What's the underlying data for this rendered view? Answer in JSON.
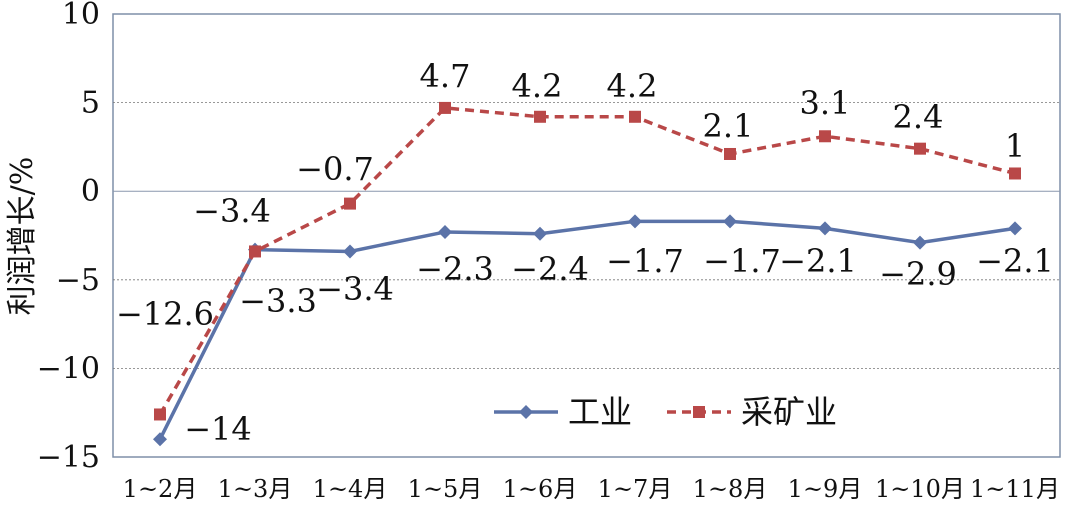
{
  "chart_data": {
    "type": "line",
    "title": "",
    "xlabel": "",
    "ylabel": "利润增长/%",
    "ylim": [
      -15,
      10
    ],
    "yticks": [
      10,
      5,
      0,
      -5,
      -10,
      -15
    ],
    "ytick_labels": [
      "10",
      "5",
      "0",
      "-5",
      "-10",
      "-15"
    ],
    "grid": true,
    "legend_position": "bottom-right",
    "categories": [
      "1~2月",
      "1~3月",
      "1~4月",
      "1~5月",
      "1~6月",
      "1~7月",
      "1~8月",
      "1~9月",
      "1~10月",
      "1~11月"
    ],
    "series": [
      {
        "name": "工业",
        "color": "#5b73a8",
        "style": "solid",
        "marker": "diamond",
        "values": [
          -14,
          -3.3,
          -3.4,
          -2.3,
          -2.4,
          -1.7,
          -1.7,
          -2.1,
          -2.9,
          -2.1
        ],
        "labels": [
          "-14",
          "-3.3",
          "-3.4",
          "-2.3",
          "-2.4",
          "-1.7",
          "-1.7",
          "-2.1",
          "-2.9",
          "-2.1"
        ]
      },
      {
        "name": "采矿业",
        "color": "#b94848",
        "style": "dashed",
        "marker": "square",
        "values": [
          -12.6,
          -3.4,
          -0.7,
          4.7,
          4.2,
          4.2,
          2.1,
          3.1,
          2.4,
          1
        ],
        "labels": [
          "-12.6",
          "-3.4",
          "-0.7",
          "4.7",
          "4.2",
          "4.2",
          "2.1",
          "3.1",
          "2.4",
          "1"
        ]
      }
    ]
  }
}
